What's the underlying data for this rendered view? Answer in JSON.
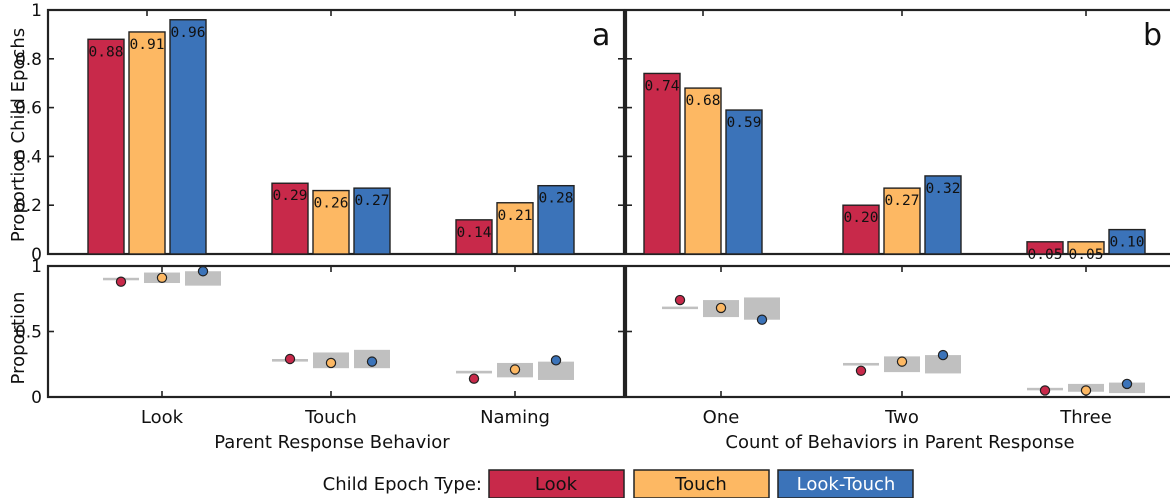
{
  "chart_data": [
    {
      "panel": "a",
      "type": "bar",
      "categories": [
        "Look",
        "Touch",
        "Naming"
      ],
      "xlabel": "Parent Response Behavior",
      "ylabel": "Proportion Child Epochs",
      "ylim": [
        0,
        1
      ],
      "yticks": [
        "0",
        "0.2",
        "0.4",
        "0.6",
        "0.8",
        "1"
      ],
      "series": [
        {
          "name": "Look",
          "values": [
            0.88,
            0.29,
            0.14
          ],
          "labels": [
            "0.88",
            "0.29",
            "0.14"
          ]
        },
        {
          "name": "Touch",
          "values": [
            0.91,
            0.26,
            0.21
          ],
          "labels": [
            "0.91",
            "0.26",
            "0.21"
          ]
        },
        {
          "name": "Look-Touch",
          "values": [
            0.96,
            0.27,
            0.28
          ],
          "labels": [
            "0.96",
            "0.27",
            "0.28"
          ]
        }
      ]
    },
    {
      "panel": "b",
      "type": "bar",
      "categories": [
        "One",
        "Two",
        "Three"
      ],
      "xlabel": "Count of Behaviors in Parent Response",
      "ylabel": "",
      "ylim": [
        0,
        1
      ],
      "series": [
        {
          "name": "Look",
          "values": [
            0.74,
            0.2,
            0.05
          ],
          "labels": [
            "0.74",
            "0.20",
            "0.05"
          ]
        },
        {
          "name": "Touch",
          "values": [
            0.68,
            0.27,
            0.05
          ],
          "labels": [
            "0.68",
            "0.27",
            "0.05"
          ]
        },
        {
          "name": "Look-Touch",
          "values": [
            0.59,
            0.32,
            0.1
          ],
          "labels": [
            "0.59",
            "0.32",
            "0.10"
          ]
        }
      ]
    },
    {
      "panel": "a-bottom",
      "type": "scatter",
      "categories": [
        "Look",
        "Touch",
        "Naming"
      ],
      "ylabel": "Proportion",
      "ylim": [
        0,
        1
      ],
      "yticks": [
        "0",
        "0.5",
        "1"
      ],
      "series": [
        {
          "name": "Look",
          "values": [
            0.88,
            0.29,
            0.14
          ],
          "range": [
            [
              0.91,
              0.91
            ],
            [
              0.27,
              0.29
            ],
            [
              0.18,
              0.2
            ]
          ]
        },
        {
          "name": "Touch",
          "values": [
            0.91,
            0.26,
            0.21
          ],
          "range": [
            [
              0.87,
              0.95
            ],
            [
              0.22,
              0.34
            ],
            [
              0.15,
              0.26
            ]
          ]
        },
        {
          "name": "Look-Touch",
          "values": [
            0.96,
            0.27,
            0.28
          ],
          "range": [
            [
              0.85,
              0.96
            ],
            [
              0.22,
              0.36
            ],
            [
              0.13,
              0.27
            ]
          ]
        }
      ]
    },
    {
      "panel": "b-bottom",
      "type": "scatter",
      "categories": [
        "One",
        "Two",
        "Three"
      ],
      "ylim": [
        0,
        1
      ],
      "series": [
        {
          "name": "Look",
          "values": [
            0.74,
            0.2,
            0.05
          ],
          "range": [
            [
              0.68,
              0.69
            ],
            [
              0.24,
              0.26
            ],
            [
              0.06,
              0.07
            ]
          ]
        },
        {
          "name": "Touch",
          "values": [
            0.68,
            0.27,
            0.05
          ],
          "range": [
            [
              0.61,
              0.74
            ],
            [
              0.19,
              0.31
            ],
            [
              0.04,
              0.1
            ]
          ]
        },
        {
          "name": "Look-Touch",
          "values": [
            0.59,
            0.32,
            0.1
          ],
          "range": [
            [
              0.59,
              0.76
            ],
            [
              0.18,
              0.32
            ],
            [
              0.03,
              0.11
            ]
          ]
        }
      ]
    }
  ],
  "legend": {
    "title": "Child Epoch Type:",
    "items": [
      {
        "label": "Look",
        "color": "#c8294a"
      },
      {
        "label": "Touch",
        "color": "#fdb863"
      },
      {
        "label": "Look-Touch",
        "color": "#3b73b9"
      }
    ]
  },
  "colors": {
    "look": "#c8294a",
    "touch": "#fdb863",
    "look_touch": "#3b73b9",
    "range": "#c0c0c0",
    "range_line": "#a8a8a8"
  }
}
